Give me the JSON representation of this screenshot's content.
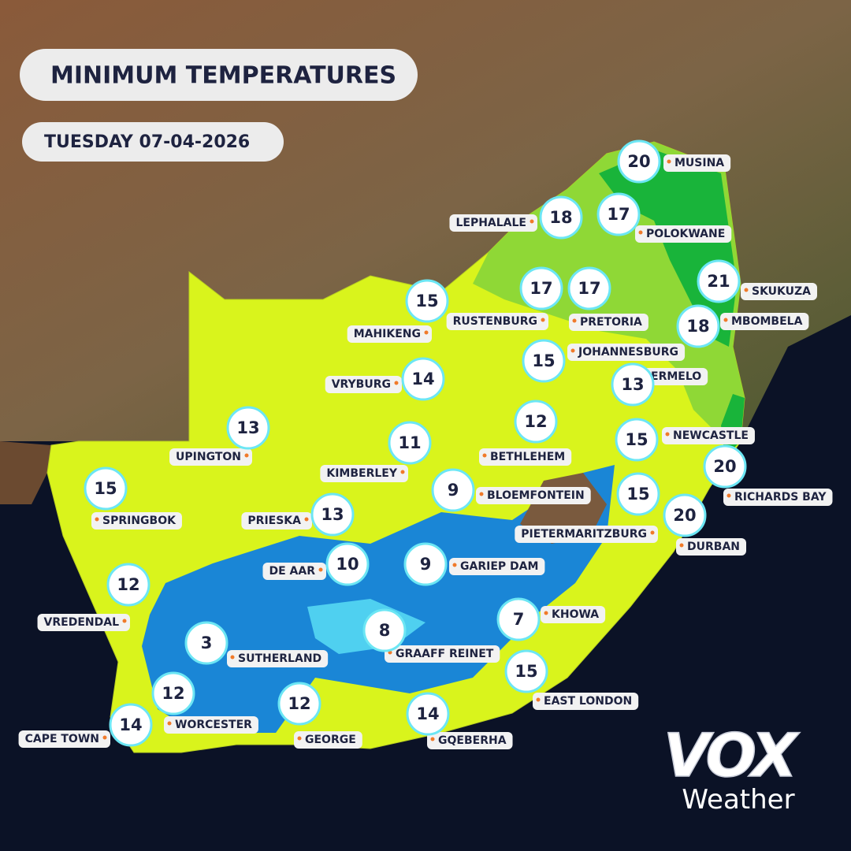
{
  "header": {
    "title": "MINIMUM TEMPERATURES",
    "date": "TUESDAY 07-04-2026"
  },
  "cities": [
    {
      "name": "MUSINA",
      "temp": "20"
    },
    {
      "name": "LEPHALALE",
      "temp": "18"
    },
    {
      "name": "POLOKWANE",
      "temp": "17"
    },
    {
      "name": "SKUKUZA",
      "temp": "21"
    },
    {
      "name": "MBOMBELA",
      "temp": "18"
    },
    {
      "name": "MAHIKENG",
      "temp": "15"
    },
    {
      "name": "RUSTENBURG",
      "temp": "17"
    },
    {
      "name": "PRETORIA",
      "temp": "17"
    },
    {
      "name": "JOHANNESBURG",
      "temp": "15"
    },
    {
      "name": "ERMELO",
      "temp": "13"
    },
    {
      "name": "VRYBURG",
      "temp": "14"
    },
    {
      "name": "UPINGTON",
      "temp": "13"
    },
    {
      "name": "BETHLEHEM",
      "temp": "12"
    },
    {
      "name": "KIMBERLEY",
      "temp": "11"
    },
    {
      "name": "NEWCASTLE",
      "temp": "15"
    },
    {
      "name": "RICHARDS BAY",
      "temp": "20"
    },
    {
      "name": "SPRINGBOK",
      "temp": "15"
    },
    {
      "name": "BLOEMFONTEIN",
      "temp": "9"
    },
    {
      "name": "PRIESKA",
      "temp": "13"
    },
    {
      "name": "PIETERMARITZBURG",
      "temp": "15"
    },
    {
      "name": "DURBAN",
      "temp": "20"
    },
    {
      "name": "DE AAR",
      "temp": "10"
    },
    {
      "name": "GARIEP DAM",
      "temp": "9"
    },
    {
      "name": "VREDENDAL",
      "temp": "12"
    },
    {
      "name": "KHOWA",
      "temp": "7"
    },
    {
      "name": "SUTHERLAND",
      "temp": "3"
    },
    {
      "name": "GRAAFF REINET",
      "temp": "8"
    },
    {
      "name": "EAST LONDON",
      "temp": "15"
    },
    {
      "name": "WORCESTER",
      "temp": "12"
    },
    {
      "name": "CAPE TOWN",
      "temp": "14"
    },
    {
      "name": "GEORGE",
      "temp": "12"
    },
    {
      "name": "GQEBERHA",
      "temp": "14"
    }
  ],
  "logo": {
    "brand": "VOX",
    "tagline": "Weather"
  }
}
